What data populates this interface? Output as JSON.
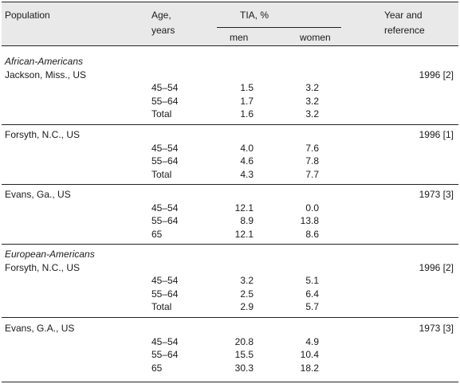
{
  "header": {
    "population": "Population",
    "age_line1": "Age,",
    "age_line2": "years",
    "tia": "TIA, %",
    "men": "men",
    "women": "women",
    "ref_line1": "Year and",
    "ref_line2": "reference"
  },
  "groups": [
    {
      "group_label": "African-Americans",
      "location": "Jackson, Miss., US",
      "reference": "1996 [2]",
      "rows": [
        {
          "age": "45–54",
          "men": "1.5",
          "women": "3.2"
        },
        {
          "age": "55–64",
          "men": "1.7",
          "women": "3.2"
        },
        {
          "age": "Total",
          "men": "1.6",
          "women": "3.2"
        }
      ]
    },
    {
      "group_label": "",
      "location": "Forsyth, N.C., US",
      "reference": "1996 [1]",
      "rows": [
        {
          "age": "45–54",
          "men": "4.0",
          "women": "7.6"
        },
        {
          "age": "55–64",
          "men": "4.6",
          "women": "7.8"
        },
        {
          "age": "Total",
          "men": "4.3",
          "women": "7.7"
        }
      ]
    },
    {
      "group_label": "",
      "location": "Evans, Ga., US",
      "reference": "1973 [3]",
      "rows": [
        {
          "age": "45–54",
          "men": "12.1",
          "women": "0.0"
        },
        {
          "age": "55–64",
          "men": "8.9",
          "women": "13.8"
        },
        {
          "age": "65",
          "men": "12.1",
          "women": "8.6"
        }
      ]
    },
    {
      "group_label": "European-Americans",
      "location": "Forsyth, N.C., US",
      "reference": "1996 [2]",
      "rows": [
        {
          "age": "45–54",
          "men": "3.2",
          "women": "5.1"
        },
        {
          "age": "55–64",
          "men": "2.5",
          "women": "6.4"
        },
        {
          "age": "Total",
          "men": "2.9",
          "women": "5.7"
        }
      ]
    },
    {
      "group_label": "",
      "location": "Evans, G.A., US",
      "reference": "1973 [3]",
      "rows": [
        {
          "age": "45–54",
          "men": "20.8",
          "women": "4.9"
        },
        {
          "age": "55–64",
          "men": "15.5",
          "women": "10.4"
        },
        {
          "age": "65",
          "men": "30.3",
          "women": "18.2"
        }
      ]
    }
  ]
}
